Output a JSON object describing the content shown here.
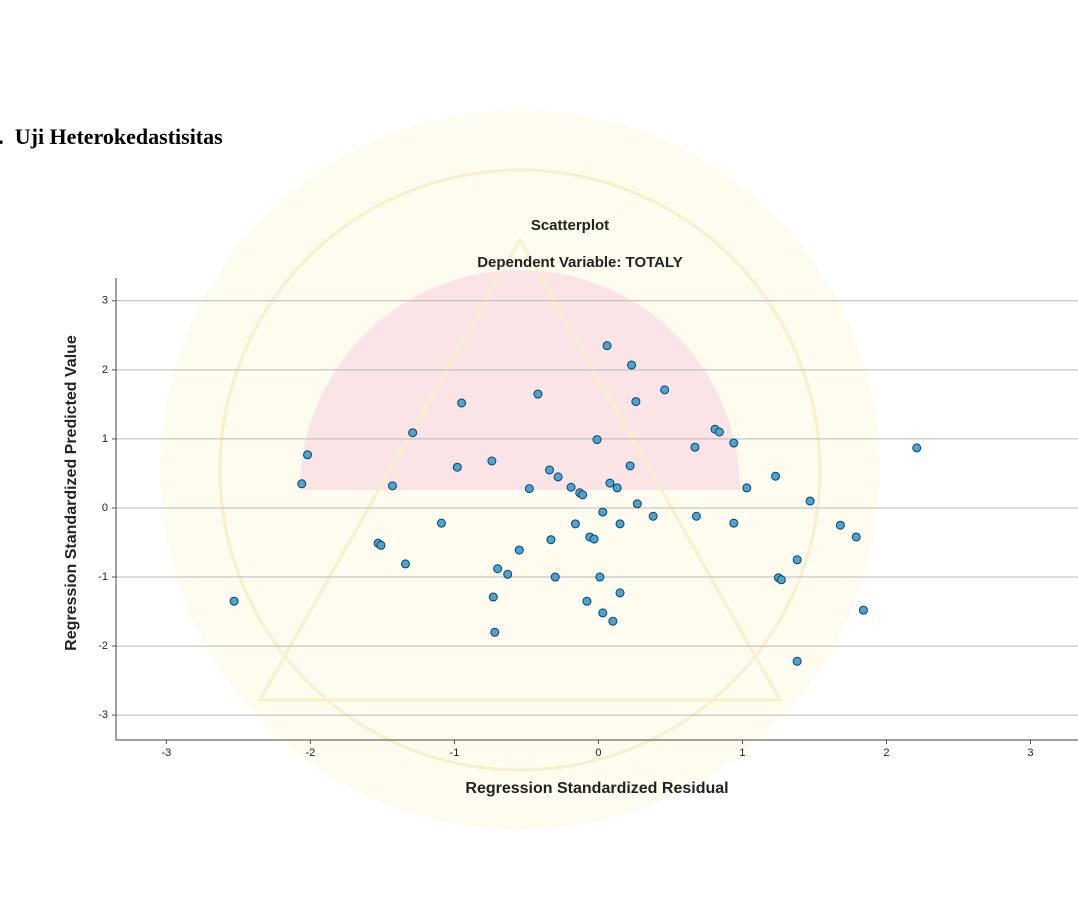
{
  "heading": "b.  Uji Heterokedastisitas",
  "chart_data": {
    "type": "scatter",
    "title": "Scatterplot",
    "subtitle": "Dependent Variable: TOTALY",
    "x_label": "Regression Standardized Residual",
    "y_label": "Regression Standardized Predicted Value",
    "x": [
      0.06,
      0.23,
      0.26,
      0.46,
      -0.42,
      -0.95,
      -1.29,
      -2.02,
      -2.06,
      -0.01,
      0.67,
      0.81,
      0.84,
      0.94,
      2.21,
      0.22,
      -0.98,
      -0.74,
      -0.34,
      -0.28,
      -0.48,
      -0.19,
      -0.13,
      -0.11,
      0.08,
      0.13,
      -1.43,
      1.23,
      1.03,
      1.47,
      0.27,
      0.38,
      0.68,
      0.94,
      -1.09,
      0.03,
      -0.16,
      0.15,
      -0.06,
      -0.03,
      -0.33,
      1.68,
      1.79,
      -1.53,
      -1.51,
      -0.55,
      -1.34,
      -0.7,
      -0.63,
      -0.3,
      0.01,
      1.38,
      1.25,
      1.27,
      0.15,
      -0.73,
      -0.08,
      -2.53,
      0.03,
      0.1,
      1.84,
      -0.72,
      1.38
    ],
    "y": [
      2.35,
      2.07,
      1.54,
      1.71,
      1.65,
      1.52,
      1.09,
      0.77,
      0.35,
      0.99,
      0.88,
      1.14,
      1.1,
      0.94,
      0.87,
      0.61,
      0.59,
      0.68,
      0.55,
      0.45,
      0.28,
      0.3,
      0.22,
      0.19,
      0.36,
      0.29,
      0.32,
      0.46,
      0.29,
      0.1,
      0.06,
      -0.12,
      -0.12,
      -0.22,
      -0.22,
      -0.06,
      -0.23,
      -0.23,
      -0.42,
      -0.45,
      -0.46,
      -0.25,
      -0.42,
      -0.51,
      -0.54,
      -0.61,
      -0.81,
      -0.88,
      -0.96,
      -1.0,
      -1.0,
      -0.75,
      -1.01,
      -1.04,
      -1.23,
      -1.29,
      -1.35,
      -1.35,
      -1.52,
      -1.64,
      -1.48,
      -1.8,
      -2.22
    ],
    "xlim": [
      -3.35,
      3.33
    ],
    "ylim": [
      -3.36,
      3.33
    ],
    "xticks": [
      -3,
      -2,
      -1,
      0,
      1,
      2,
      3
    ],
    "yticks": [
      -3,
      -2,
      -1,
      0,
      1,
      2,
      3
    ],
    "color": "#3fa8dc",
    "grid": true
  }
}
